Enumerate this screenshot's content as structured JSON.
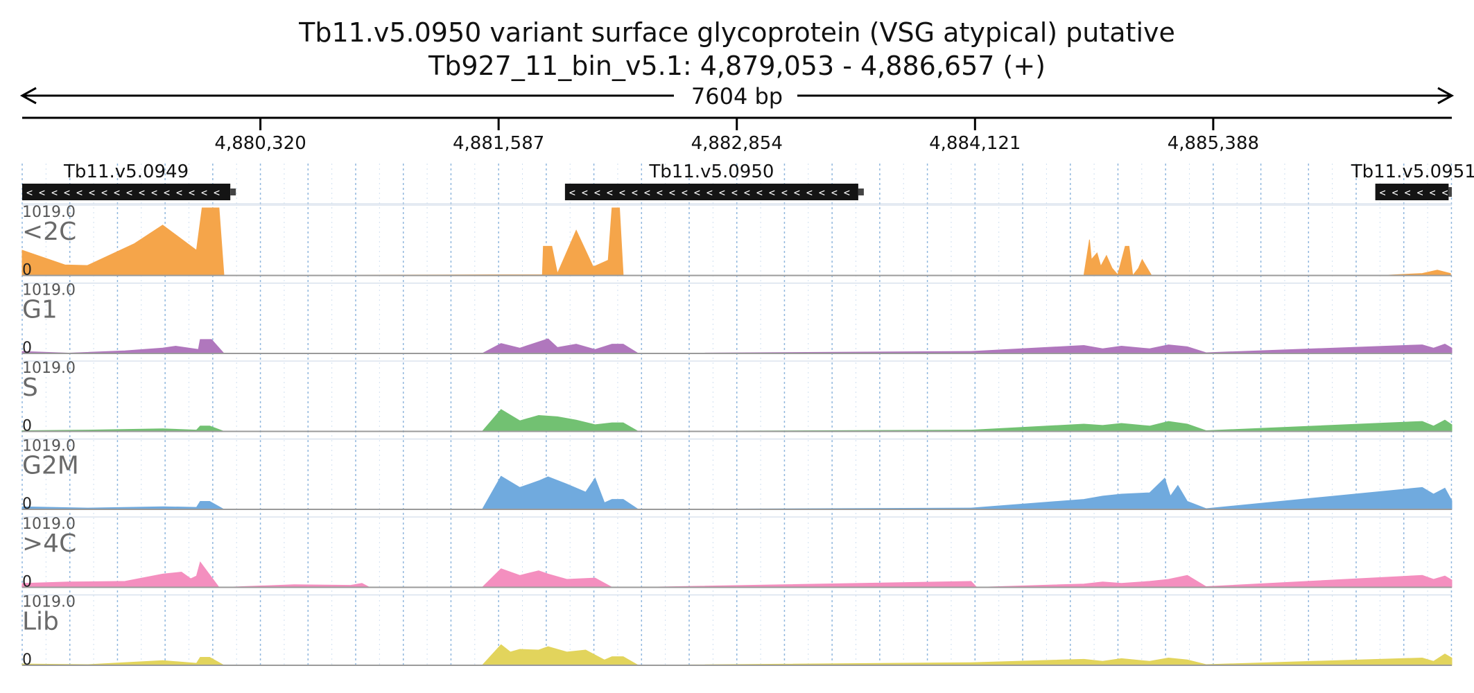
{
  "chart_data": {
    "type": "area",
    "title": "Tb11.v5.0950  variant surface glycoprotein (VSG  atypical)  putative",
    "subtitle": "Tb927_11_bin_v5.1: 4,879,053 - 4,886,657 (+)",
    "span_label": "7604 bp",
    "xlim": [
      4879053,
      4886657
    ],
    "ticks": [
      {
        "value": 4880320,
        "label": "4,880,320"
      },
      {
        "value": 4881587,
        "label": "4,881,587"
      },
      {
        "value": 4882854,
        "label": "4,882,854"
      },
      {
        "value": 4884121,
        "label": "4,884,121"
      },
      {
        "value": 4885388,
        "label": "4,885,388"
      }
    ],
    "genes": [
      {
        "name": "Tb11.v5.0949",
        "start": 4879053,
        "end": 4880160,
        "strand": "-"
      },
      {
        "name": "Tb11.v5.0950",
        "start": 4881940,
        "end": 4883500,
        "strand": "-"
      },
      {
        "name": "Tb11.v5.0951",
        "start": 4886250,
        "end": 4886657,
        "strand": "-",
        "split": 4886640
      }
    ],
    "tracks_max_label": "1019.0",
    "tracks_min_label": "0",
    "ylim": [
      0,
      1019
    ],
    "tracks": [
      {
        "name": "<2C",
        "color": "#f5a54a",
        "x": [
          4879053,
          4879280,
          4879400,
          4879650,
          4879800,
          4879980,
          4880010,
          4880100,
          4880126,
          4881550,
          4881820,
          4881825,
          4881870,
          4881900,
          4882000,
          4882090,
          4882170,
          4882190,
          4882230,
          4882250,
          4882300,
          4882330,
          4884700,
          4884730,
          4884740,
          4884770,
          4884790,
          4884820,
          4884850,
          4884880,
          4884920,
          4884940,
          4884960,
          4884990,
          4885010,
          4885060,
          4885120,
          4885180,
          4885220,
          4885240,
          4885270,
          4886280,
          4886500,
          4886580,
          4886650
        ],
        "y": [
          380,
          160,
          150,
          480,
          760,
          380,
          1019,
          1019,
          0,
          10,
          10,
          440,
          440,
          30,
          680,
          130,
          230,
          1019,
          1019,
          0,
          0,
          0,
          0,
          540,
          240,
          340,
          140,
          300,
          110,
          10,
          440,
          440,
          0,
          110,
          240,
          0,
          0,
          0,
          0,
          0,
          0,
          0,
          30,
          80,
          30
        ]
      },
      {
        "name": "G1",
        "color": "#b077bd",
        "x": [
          4879053,
          4879300,
          4879600,
          4879800,
          4879870,
          4879990,
          4880000,
          4880060,
          4880126,
          4881500,
          4881600,
          4881700,
          4881850,
          4881900,
          4882000,
          4882100,
          4882190,
          4882250,
          4882330,
          4884100,
          4884700,
          4884800,
          4884900,
          4885050,
          4885150,
          4885250,
          4885350,
          4886500,
          4886560,
          4886620,
          4886657
        ],
        "y": [
          30,
          5,
          40,
          80,
          110,
          60,
          210,
          210,
          0,
          0,
          150,
          80,
          220,
          90,
          140,
          60,
          140,
          140,
          0,
          30,
          120,
          70,
          110,
          70,
          130,
          100,
          10,
          130,
          80,
          140,
          80
        ]
      },
      {
        "name": "S",
        "color": "#72c172",
        "x": [
          4879053,
          4879400,
          4879800,
          4879980,
          4880000,
          4880050,
          4880126,
          4881500,
          4881600,
          4881700,
          4881800,
          4881900,
          4882000,
          4882100,
          4882190,
          4882250,
          4882330,
          4884100,
          4884700,
          4884800,
          4884900,
          4885050,
          4885150,
          4885250,
          4885350,
          4886500,
          4886560,
          4886620,
          4886657
        ],
        "y": [
          10,
          20,
          40,
          20,
          80,
          80,
          0,
          0,
          330,
          160,
          240,
          220,
          170,
          100,
          130,
          130,
          0,
          20,
          110,
          90,
          120,
          80,
          150,
          110,
          10,
          150,
          80,
          170,
          100
        ]
      },
      {
        "name": "G2M",
        "color": "#70aade",
        "x": [
          4879053,
          4879400,
          4879800,
          4879980,
          4880000,
          4880050,
          4880126,
          4881500,
          4881600,
          4881700,
          4881800,
          4881850,
          4881950,
          4882050,
          4882100,
          4882150,
          4882190,
          4882250,
          4882330,
          4884100,
          4884700,
          4884800,
          4884900,
          4885050,
          4885130,
          4885160,
          4885200,
          4885250,
          4885350,
          4886500,
          4886560,
          4886620,
          4886657
        ],
        "y": [
          40,
          20,
          40,
          30,
          120,
          120,
          0,
          0,
          500,
          330,
          430,
          490,
          380,
          260,
          470,
          100,
          150,
          150,
          0,
          20,
          150,
          200,
          230,
          250,
          470,
          200,
          360,
          120,
          10,
          330,
          230,
          320,
          130
        ]
      },
      {
        "name": ">4C",
        "color": "#f48fbf",
        "x": [
          4879053,
          4879300,
          4879600,
          4879800,
          4879900,
          4879950,
          4879980,
          4880000,
          4880100,
          4880126,
          4880500,
          4880800,
          4880860,
          4880900,
          4881500,
          4881600,
          4881700,
          4881800,
          4881850,
          4881950,
          4882100,
          4882190,
          4882250,
          4882330,
          4884100,
          4884130,
          4884700,
          4884800,
          4884900,
          4885050,
          4885150,
          4885250,
          4885350,
          4886500,
          4886560,
          4886620,
          4886657
        ],
        "y": [
          60,
          80,
          90,
          200,
          230,
          130,
          170,
          380,
          0,
          0,
          40,
          30,
          60,
          0,
          0,
          280,
          180,
          250,
          200,
          120,
          140,
          0,
          0,
          0,
          90,
          0,
          50,
          80,
          60,
          90,
          120,
          180,
          10,
          180,
          120,
          170,
          110
        ]
      },
      {
        "name": "Lib",
        "color": "#e2d45c",
        "x": [
          4879053,
          4879400,
          4879800,
          4879980,
          4880000,
          4880050,
          4880126,
          4881500,
          4881600,
          4881650,
          4881700,
          4881800,
          4881850,
          4881950,
          4882050,
          4882150,
          4882190,
          4882250,
          4882330,
          4884100,
          4884700,
          4884800,
          4884900,
          4885050,
          4885150,
          4885250,
          4885350,
          4886500,
          4886560,
          4886620,
          4886657
        ],
        "y": [
          20,
          10,
          70,
          30,
          120,
          120,
          0,
          0,
          310,
          200,
          240,
          230,
          280,
          200,
          230,
          80,
          130,
          130,
          0,
          40,
          90,
          60,
          100,
          60,
          110,
          80,
          10,
          110,
          60,
          170,
          110
        ]
      }
    ]
  }
}
